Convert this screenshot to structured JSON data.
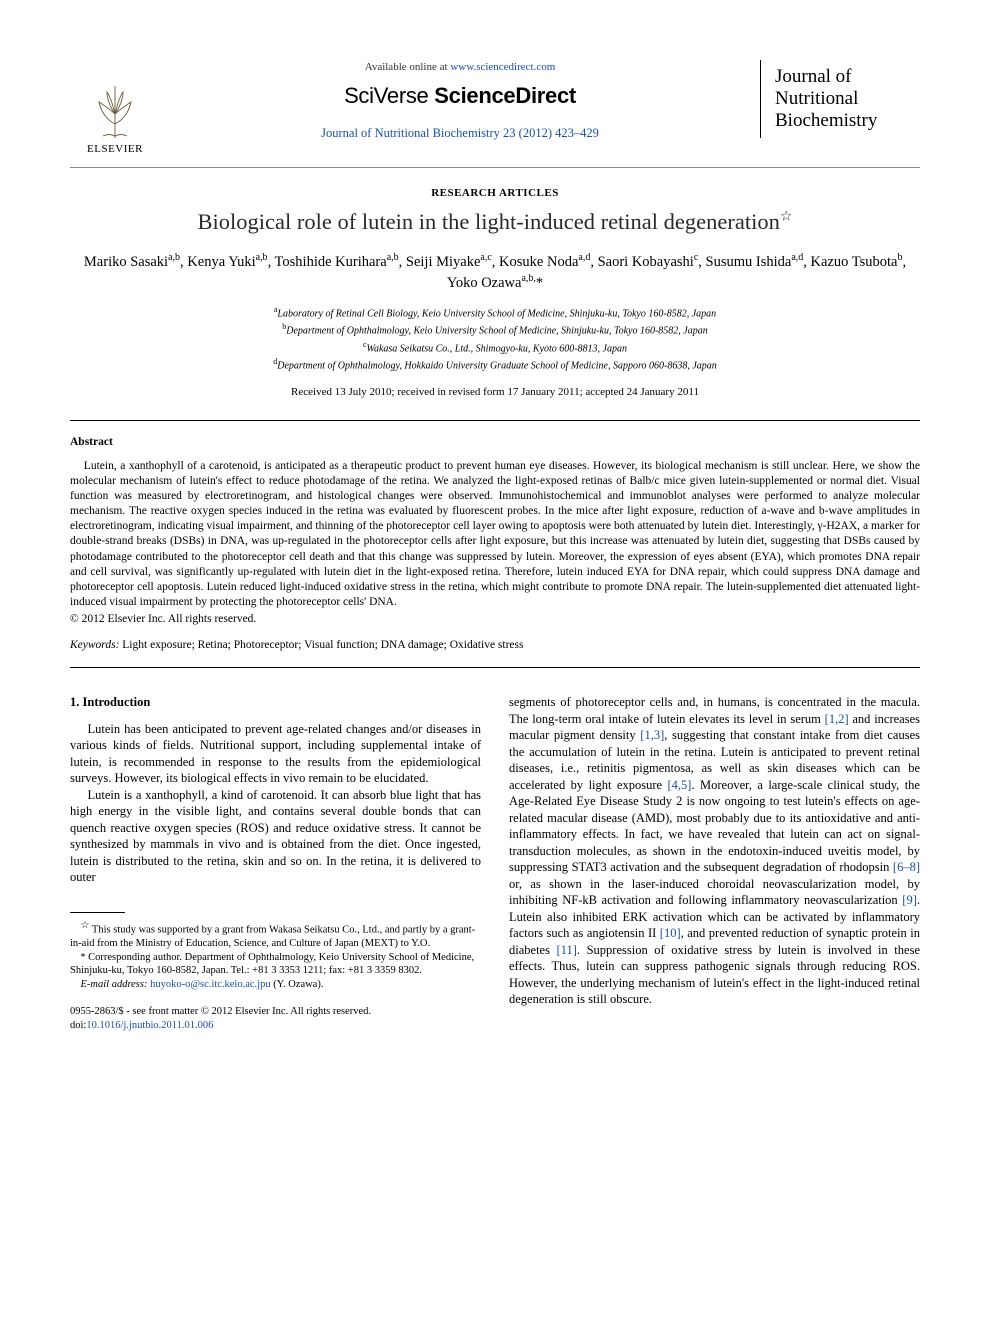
{
  "header": {
    "available_prefix": "Available online at ",
    "available_url": "www.sciencedirect.com",
    "sciverse_a": "SciVerse ",
    "sciverse_b": "ScienceDirect",
    "citation": "Journal of Nutritional Biochemistry 23 (2012) 423–429",
    "elsevier_label": "ELSEVIER",
    "journal_logo_1": "Journal of",
    "journal_logo_2": "Nutritional",
    "journal_logo_3": "Biochemistry"
  },
  "article": {
    "section_label": "RESEARCH ARTICLES",
    "title": "Biological role of lutein in the light-induced retinal degeneration",
    "title_mark": "☆",
    "authors_html": "Mariko Sasaki<sup>a,b</sup>, Kenya Yuki<sup>a,b</sup>, Toshihide Kurihara<sup>a,b</sup>, Seiji Miyake<sup>a,c</sup>, Kosuke Noda<sup>a,d</sup>, Saori Kobayashi<sup>c</sup>, Susumu Ishida<sup>a,d</sup>, Kazuo Tsubota<sup>b</sup>, Yoko Ozawa<sup>a,b,</sup>*",
    "affiliations": [
      "<sup>a</sup>Laboratory of Retinal Cell Biology, Keio University School of Medicine, Shinjuku-ku, Tokyo 160-8582, Japan",
      "<sup>b</sup>Department of Ophthalmology, Keio University School of Medicine, Shinjuku-ku, Tokyo 160-8582, Japan",
      "<sup>c</sup>Wakasa Seikatsu Co., Ltd., Shimogyo-ku, Kyoto 600-8813, Japan",
      "<sup>d</sup>Department of Ophthalmology, Hokkaido University Graduate School of Medicine, Sapporo 060-8638, Japan"
    ],
    "dates": "Received 13 July 2010; received in revised form 17 January 2011; accepted 24 January 2011"
  },
  "abstract": {
    "heading": "Abstract",
    "text": "Lutein, a xanthophyll of a carotenoid, is anticipated as a therapeutic product to prevent human eye diseases. However, its biological mechanism is still unclear. Here, we show the molecular mechanism of lutein's effect to reduce photodamage of the retina. We analyzed the light-exposed retinas of Balb/c mice given lutein-supplemented or normal diet. Visual function was measured by electroretinogram, and histological changes were observed. Immunohistochemical and immunoblot analyses were performed to analyze molecular mechanism. The reactive oxygen species induced in the retina was evaluated by fluorescent probes. In the mice after light exposure, reduction of a-wave and b-wave amplitudes in electroretinogram, indicating visual impairment, and thinning of the photoreceptor cell layer owing to apoptosis were both attenuated by lutein diet. Interestingly, γ-H2AX, a marker for double-strand breaks (DSBs) in DNA, was up-regulated in the photoreceptor cells after light exposure, but this increase was attenuated by lutein diet, suggesting that DSBs caused by photodamage contributed to the photoreceptor cell death and that this change was suppressed by lutein. Moreover, the expression of eyes absent (EYA), which promotes DNA repair and cell survival, was significantly up-regulated with lutein diet in the light-exposed retina. Therefore, lutein induced EYA for DNA repair, which could suppress DNA damage and photoreceptor cell apoptosis. Lutein reduced light-induced oxidative stress in the retina, which might contribute to promote DNA repair. The lutein-supplemented diet attenuated light-induced visual impairment by protecting the photoreceptor cells' DNA.",
    "copyright": "© 2012 Elsevier Inc. All rights reserved.",
    "keywords_label": "Keywords:",
    "keywords": " Light exposure; Retina; Photoreceptor; Visual function; DNA damage; Oxidative stress"
  },
  "body": {
    "section1_head": "1. Introduction",
    "col1_p1": "Lutein has been anticipated to prevent age-related changes and/or diseases in various kinds of fields. Nutritional support, including supplemental intake of lutein, is recommended in response to the results from the epidemiological surveys. However, its biological effects in vivo remain to be elucidated.",
    "col1_p2": "Lutein is a xanthophyll, a kind of carotenoid. It can absorb blue light that has high energy in the visible light, and contains several double bonds that can quench reactive oxygen species (ROS) and reduce oxidative stress. It cannot be synthesized by mammals in vivo and is obtained from the diet. Once ingested, lutein is distributed to the retina, skin and so on. In the retina, it is delivered to outer",
    "col2_p1_a": "segments of photoreceptor cells and, in humans, is concentrated in the macula. The long-term oral intake of lutein elevates its level in serum ",
    "ref12": "[1,2]",
    "col2_p1_b": " and increases macular pigment density ",
    "ref13": "[1,3]",
    "col2_p1_c": ", suggesting that constant intake from diet causes the accumulation of lutein in the retina. Lutein is anticipated to prevent retinal diseases, i.e., retinitis pigmentosa, as well as skin diseases which can be accelerated by light exposure ",
    "ref45": "[4,5]",
    "col2_p1_d": ". Moreover, a large-scale clinical study, the Age-Related Eye Disease Study 2 is now ongoing to test lutein's effects on age-related macular disease (AMD), most probably due to its antioxidative and anti-inflammatory effects. In fact, we have revealed that lutein can act on signal-transduction molecules, as shown in the endotoxin-induced uveitis model, by suppressing STAT3 activation and the subsequent degradation of rhodopsin ",
    "ref68": "[6–8]",
    "col2_p1_e": " or, as shown in the laser-induced choroidal neovascularization model, by inhibiting NF-kB activation and following inflammatory neovascularization ",
    "ref9": "[9]",
    "col2_p1_f": ". Lutein also inhibited ERK activation which can be activated by inflammatory factors such as angiotensin II ",
    "ref10": "[10]",
    "col2_p1_g": ", and prevented reduction of synaptic protein in diabetes ",
    "ref11": "[11]",
    "col2_p1_h": ". Suppression of oxidative stress by lutein is involved in these effects. Thus, lutein can suppress pathogenic signals through reducing ROS. However, the underlying mechanism of lutein's effect in the light-induced retinal degeneration is still obscure."
  },
  "footnotes": {
    "fn1_mark": "☆",
    "fn1": " This study was supported by a grant from Wakasa Seikatsu Co., Ltd., and partly by a grant-in-aid from the Ministry of Education, Science, and Culture of Japan (MEXT) to Y.O.",
    "fn2_mark": "*",
    "fn2": " Corresponding author. Department of Ophthalmology, Keio University School of Medicine, Shinjuku-ku, Tokyo 160-8582, Japan. Tel.: +81 3 3353 1211; fax: +81 3 3359 8302.",
    "email_label": "E-mail address:",
    "email": "huyoko-o@sc.itc.keio.ac.jpu",
    "email_suffix": " (Y. Ozawa)."
  },
  "bottom": {
    "line1": "0955-2863/$ - see front matter © 2012 Elsevier Inc. All rights reserved.",
    "doi_prefix": "doi:",
    "doi": "10.1016/j.jnutbio.2011.01.006"
  },
  "colors": {
    "link": "#1a4fa3",
    "text": "#000000",
    "rule": "#000000"
  }
}
